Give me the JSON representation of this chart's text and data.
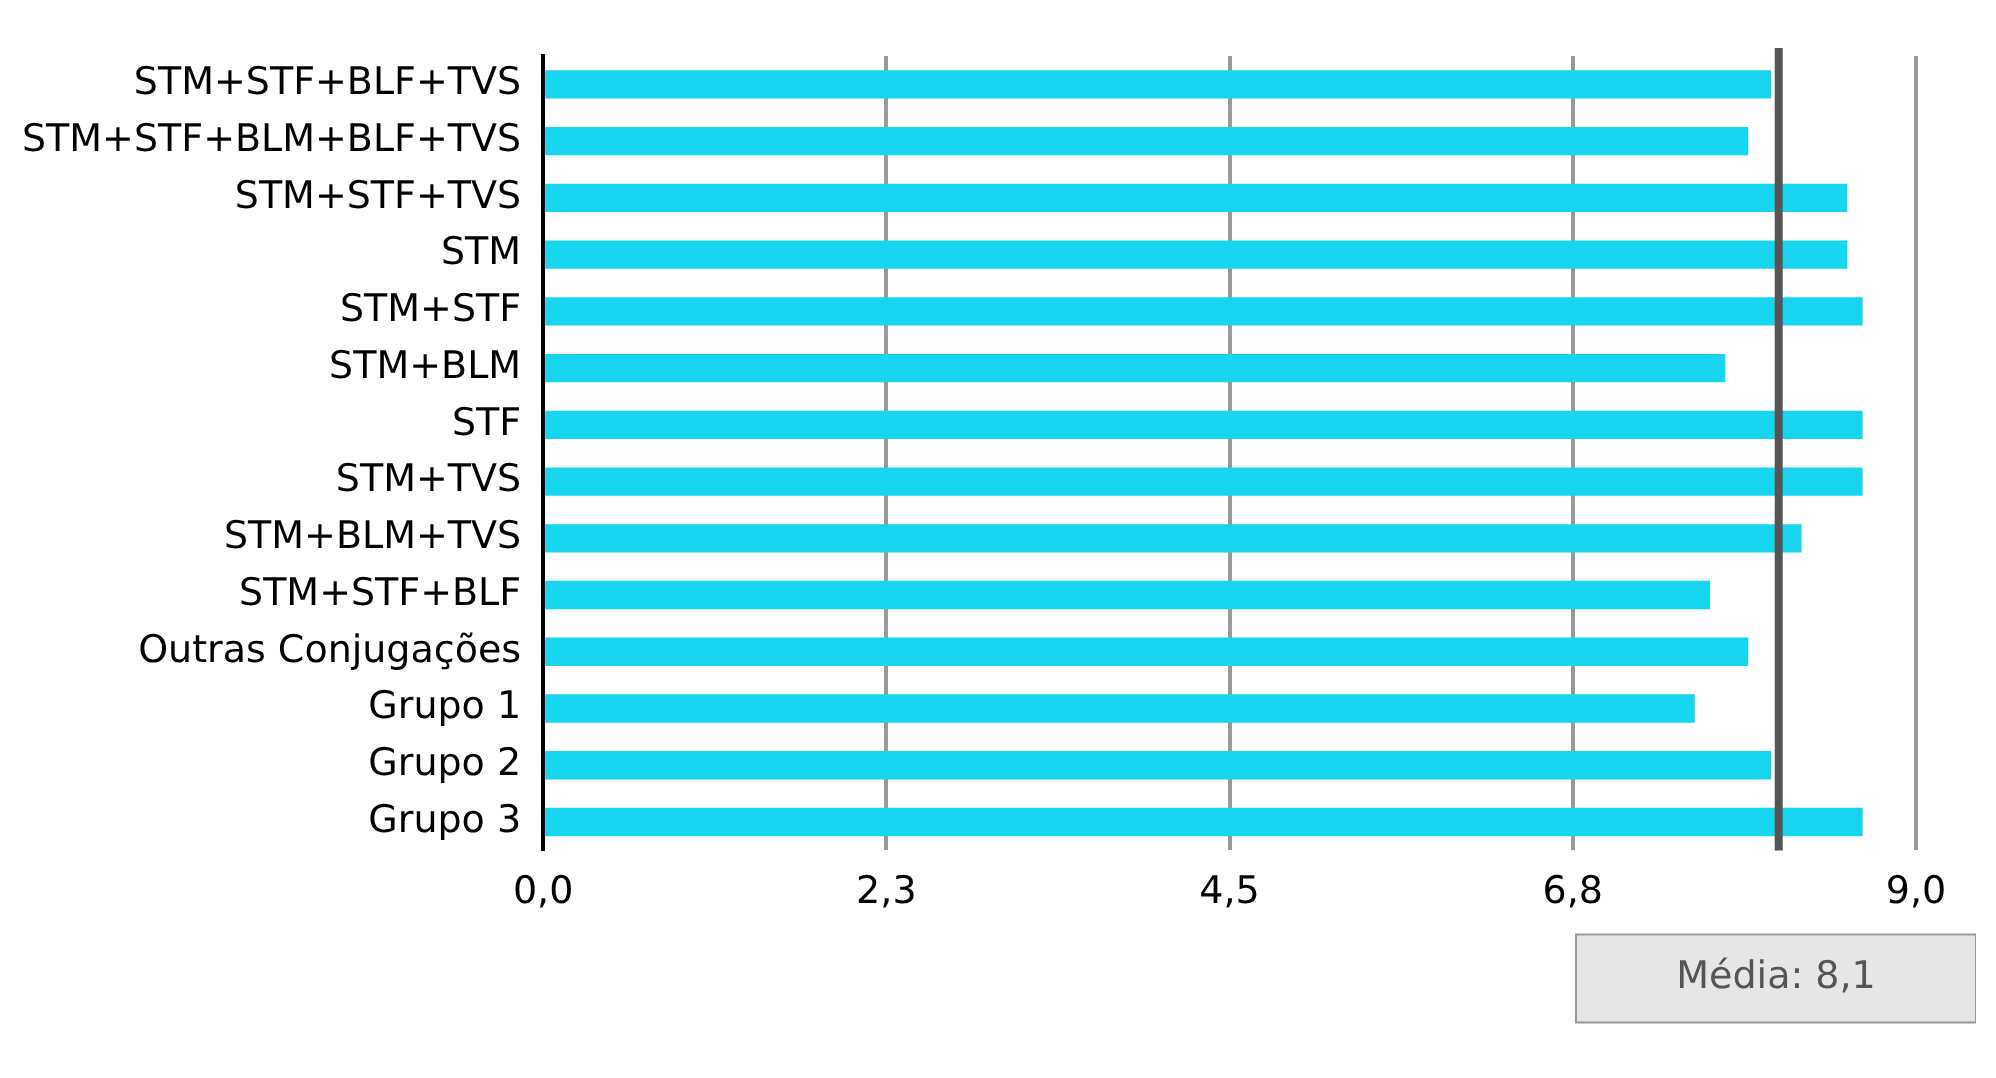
{
  "chart_data": {
    "type": "bar",
    "orientation": "horizontal",
    "categories": [
      "STM+STF+BLF+TVS",
      "STM+STF+BLM+BLF+TVS",
      "STM+STF+TVS",
      "STM",
      "STM+STF",
      "STM+BLM",
      "STF",
      "STM+TVS",
      "STM+BLM+TVS",
      "STM+STF+BLF",
      "Outras Conjugações",
      "Grupo 1",
      "Grupo 2",
      "Grupo 3"
    ],
    "values": [
      8.05,
      7.9,
      8.55,
      8.55,
      8.65,
      7.75,
      8.65,
      8.65,
      8.25,
      7.65,
      7.9,
      7.55,
      8.05,
      8.65
    ],
    "color": "#17d5ef",
    "xlim": [
      0,
      9
    ],
    "xticks": [
      {
        "value": 0,
        "label": "0,0"
      },
      {
        "value": 2.25,
        "label": "2,3"
      },
      {
        "value": 4.5,
        "label": "4,5"
      },
      {
        "value": 6.75,
        "label": "6,8"
      },
      {
        "value": 9,
        "label": "9,0"
      }
    ],
    "grid": "x",
    "legend": false,
    "ref_lines": [
      {
        "axis": "x",
        "value": 8.1,
        "label": "Média: 8,1",
        "color": "#555555"
      }
    ]
  }
}
